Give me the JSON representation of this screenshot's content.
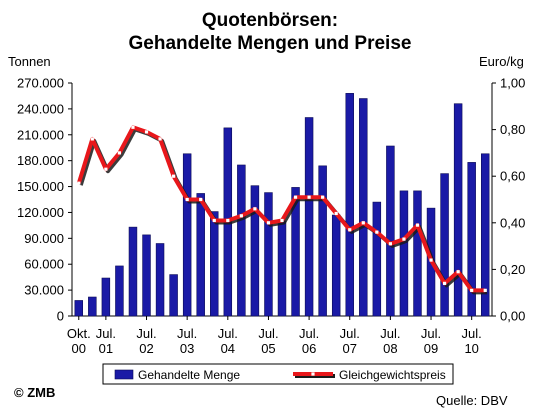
{
  "chart_data": {
    "type": "bar+line",
    "title": "Quotenbörsen:",
    "subtitle": "Gehandelte Mengen und Preise",
    "ylabel_left": "Tonnen",
    "ylabel_right": "Euro/kg",
    "ylim_left": [
      0,
      270000
    ],
    "ylim_right": [
      0,
      1.0
    ],
    "yticks_left": [
      "0",
      "30.000",
      "60.000",
      "90.000",
      "120.000",
      "150.000",
      "180.000",
      "210.000",
      "240.000",
      "270.000"
    ],
    "yticks_right": [
      "0,00",
      "0,20",
      "0,40",
      "0,60",
      "0,80",
      "1,00"
    ],
    "xtick_labels": [
      {
        "index": 0,
        "line1": "Okt.",
        "line2": "00"
      },
      {
        "index": 2,
        "line1": "Jul.",
        "line2": "01"
      },
      {
        "index": 5,
        "line1": "Jul.",
        "line2": "02"
      },
      {
        "index": 8,
        "line1": "Jul.",
        "line2": "03"
      },
      {
        "index": 11,
        "line1": "Jul.",
        "line2": "04"
      },
      {
        "index": 14,
        "line1": "Jul.",
        "line2": "05"
      },
      {
        "index": 17,
        "line1": "Jul.",
        "line2": "06"
      },
      {
        "index": 20,
        "line1": "Jul.",
        "line2": "07"
      },
      {
        "index": 23,
        "line1": "Jul.",
        "line2": "08"
      },
      {
        "index": 26,
        "line1": "Jul.",
        "line2": "09"
      },
      {
        "index": 29,
        "line1": "Jul.",
        "line2": "10"
      }
    ],
    "series": [
      {
        "name": "Gehandelte Menge",
        "kind": "bar",
        "axis": "left",
        "color": "#1a1aa6",
        "values": [
          18000,
          22000,
          44000,
          58000,
          103000,
          94000,
          84000,
          48000,
          188000,
          142000,
          121000,
          218000,
          175000,
          151000,
          143000,
          110000,
          149000,
          230000,
          174000,
          117000,
          258000,
          252000,
          132000,
          197000,
          145000,
          145000,
          125000,
          165000,
          246000,
          178000,
          188000
        ]
      },
      {
        "name": "Gleichgewichtspreis",
        "kind": "line",
        "axis": "right",
        "color": "#e8171b",
        "values": [
          0.57,
          0.76,
          0.63,
          0.7,
          0.81,
          0.79,
          0.76,
          0.6,
          0.5,
          0.5,
          0.41,
          0.41,
          0.43,
          0.46,
          0.4,
          0.41,
          0.51,
          0.51,
          0.51,
          0.44,
          0.37,
          0.4,
          0.36,
          0.31,
          0.33,
          0.39,
          0.24,
          0.14,
          0.19,
          0.11,
          0.11
        ]
      }
    ],
    "legend": {
      "position": "bottom"
    }
  },
  "footer": {
    "copyright": "© ZMB",
    "source": "Quelle: DBV"
  },
  "colors": {
    "bar": "#1a1aa6",
    "bar_edge": "#0b0b55",
    "line": "#e8171b",
    "marker": "#ffffff",
    "shadow": "#1a1a1a"
  }
}
